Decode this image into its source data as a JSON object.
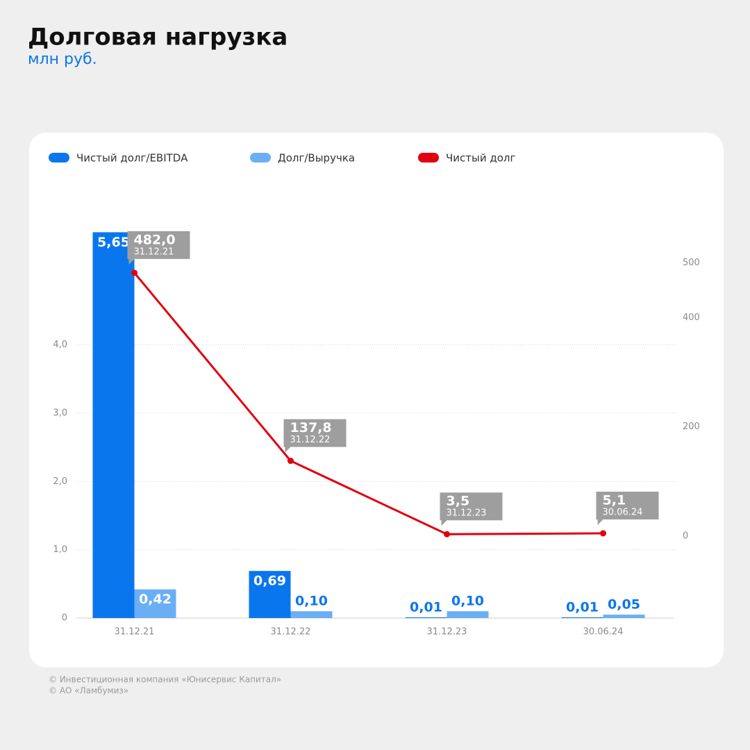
{
  "chart_data": {
    "type": "bar_line",
    "title": "Долговая нагрузка",
    "subtitle": "млн руб.",
    "categories": [
      "31.12.21",
      "31.12.22",
      "31.12.23",
      "30.06.24"
    ],
    "series": [
      {
        "name": "Чистый долг/EBITDA",
        "color": "#0a76ee",
        "type": "bar",
        "values": [
          5.65,
          0.69,
          0.01,
          0.01
        ],
        "value_labels": [
          "5,65",
          "0,69",
          "0,01",
          "0,01"
        ]
      },
      {
        "name": "Долг/Выручка",
        "color": "#6aaff5",
        "type": "bar",
        "values": [
          0.42,
          0.1,
          0.1,
          0.05
        ],
        "value_labels": [
          "0,42",
          "0,10",
          "0,10",
          "0,05"
        ]
      },
      {
        "name": "Чистый долг",
        "color": "#e0000f",
        "type": "line",
        "axis": "y2",
        "values": [
          482.0,
          137.8,
          3.5,
          5.1
        ],
        "value_labels": [
          "482,0",
          "137,8",
          "3,5",
          "5,1"
        ]
      }
    ],
    "ylim": [
      0,
      6
    ],
    "yticks": [
      0,
      {
        "value": 1,
        "label": "1,0"
      },
      {
        "value": 2,
        "label": "2,0"
      },
      {
        "value": 3,
        "label": "3,0"
      },
      {
        "value": 4,
        "label": "4,0"
      }
    ],
    "y2lim": [
      -150,
      600
    ],
    "y2ticks": [
      0,
      200,
      400,
      500
    ],
    "grid": true,
    "legend": "top",
    "footer": [
      "© Инвестиционная компания «Юнисервис Капитал»",
      "© АО «Ламбумиз»"
    ]
  }
}
